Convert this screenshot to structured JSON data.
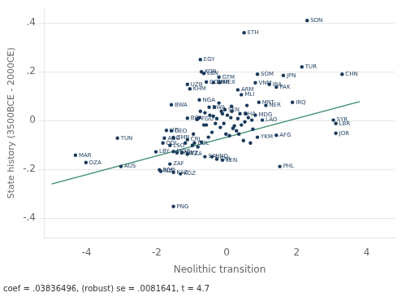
{
  "chart_data": {
    "type": "scatter",
    "xlabel": "Neolithic transition",
    "ylabel": "State history (3500BCE - 2000CE)",
    "annotation": "coef = .03836496, (robust) se = .0081641, t = 4.7",
    "xlim": [
      -5.2,
      4.8
    ],
    "ylim": [
      -0.48,
      0.46
    ],
    "xticks": [
      -4,
      -2,
      0,
      2,
      4
    ],
    "yticks": [
      {
        "value": -0.4,
        "label": "-.4"
      },
      {
        "value": -0.2,
        "label": "-.2"
      },
      0,
      {
        "value": 0.2,
        "label": ".2"
      },
      {
        "value": 0.4,
        "label": ".4"
      }
    ],
    "grid": "y",
    "series": [
      {
        "type": "scatter",
        "color": "#1a3a5c",
        "x": [
          -0.85,
          -0.65,
          -0.48,
          -0.28,
          -0.08,
          0.12,
          0.22,
          0.32,
          0.02,
          -0.18,
          -0.38,
          0.52,
          0.62,
          0.42,
          -0.58,
          -0.78,
          0.72,
          -0.12,
          0.18,
          -0.32,
          -0.02,
          0.28,
          -0.52,
          0.48,
          -0.72,
          0.68,
          -0.98,
          -1.18,
          -0.82,
          0.58,
          -0.22,
          0.14,
          -0.42,
          0.08,
          -0.62,
          0.35,
          -0.15,
          0.55,
          -0.95,
          0.75,
          -0.35,
          0.15,
          -0.75
        ],
        "y": [
          0.005,
          -0.018,
          0.022,
          0.008,
          -0.012,
          0.012,
          -0.022,
          0.008,
          0.022,
          -0.028,
          0.018,
          -0.005,
          0.012,
          -0.018,
          -0.018,
          0.012,
          0.002,
          0.028,
          -0.032,
          -0.012,
          -0.055,
          -0.042,
          -0.068,
          -0.082,
          -0.088,
          -0.092,
          -0.102,
          -0.092,
          -0.108,
          0.062,
          0.072,
          0.058,
          -0.048,
          -0.062,
          0.032,
          -0.055,
          0.038,
          0.028,
          -0.055,
          -0.035,
          0.055,
          0.038,
          0.038
        ]
      },
      {
        "type": "scatter",
        "color": "#1a3a5c",
        "labels": [
          "SDN",
          "ETH",
          "EGY",
          "TUR",
          "CHN",
          "KOR",
          "LBN",
          "SOM",
          "JPN",
          "GTM",
          "UZB",
          "KHM",
          "DOM",
          "CMR",
          "MEX",
          "VNM",
          "IRA",
          "PAK",
          "ARM",
          "MLI",
          "NGA",
          "MRT",
          "NER",
          "IRQ",
          "BWA",
          "RWA",
          "SEN",
          "GHA",
          "MDG",
          "BRA",
          "TGO",
          "LAO",
          "SYR",
          "LBR",
          "HTI",
          "GEO",
          "AFG",
          "YKM",
          "JOR",
          "AGO",
          "ZMB",
          "CRI",
          "COL",
          "DOL",
          "LSO",
          "TUN",
          "LBY",
          "MOZ",
          "MWI",
          "SWZ",
          "TZA",
          "SAL",
          "HND",
          "CHL",
          "KEN",
          "MAR",
          "DZA",
          "AUS",
          "ZAF",
          "PHL",
          "BGD",
          "NZL",
          "KAZ",
          "KGZ",
          "PNG"
        ],
        "x": [
          2.3,
          0.5,
          -0.75,
          2.15,
          3.3,
          -0.72,
          -0.65,
          0.88,
          1.62,
          -0.22,
          -1.12,
          -1.05,
          -0.58,
          -0.38,
          -0.2,
          0.82,
          1.22,
          1.42,
          0.32,
          0.42,
          -0.78,
          0.92,
          1.12,
          1.88,
          -1.58,
          -0.5,
          -0.05,
          0.38,
          0.82,
          -1.12,
          -0.82,
          1.02,
          3.05,
          3.12,
          -1.72,
          -1.58,
          1.42,
          0.88,
          3.12,
          -1.78,
          -1.52,
          -1.12,
          -0.92,
          -1.82,
          -1.62,
          -3.12,
          -2.02,
          -1.52,
          -1.42,
          -1.28,
          -1.12,
          -0.62,
          -0.42,
          -0.28,
          -0.12,
          -4.32,
          -4.02,
          -3.02,
          -1.62,
          1.52,
          -1.92,
          -1.88,
          -1.52,
          -1.32,
          -1.52
        ],
        "y": [
          0.41,
          0.36,
          0.25,
          0.22,
          0.19,
          0.2,
          0.193,
          0.19,
          0.185,
          0.178,
          0.148,
          0.13,
          0.158,
          0.156,
          0.156,
          0.155,
          0.148,
          0.137,
          0.126,
          0.106,
          0.085,
          0.075,
          0.062,
          0.075,
          0.065,
          0.055,
          0.045,
          0.028,
          0.022,
          0.01,
          0.008,
          0.002,
          0.002,
          -0.012,
          -0.04,
          -0.042,
          -0.06,
          -0.068,
          -0.052,
          -0.072,
          -0.07,
          -0.078,
          -0.092,
          -0.092,
          -0.102,
          -0.072,
          -0.128,
          -0.127,
          -0.132,
          -0.132,
          -0.138,
          -0.148,
          -0.148,
          -0.158,
          -0.162,
          -0.142,
          -0.172,
          -0.188,
          -0.178,
          -0.188,
          -0.202,
          -0.208,
          -0.212,
          -0.218,
          -0.352
        ]
      },
      {
        "type": "line",
        "color": "#3a8c6e",
        "x": [
          -5.0,
          3.8
        ],
        "y": [
          -0.2598248,
          0.077786848
        ]
      }
    ]
  }
}
